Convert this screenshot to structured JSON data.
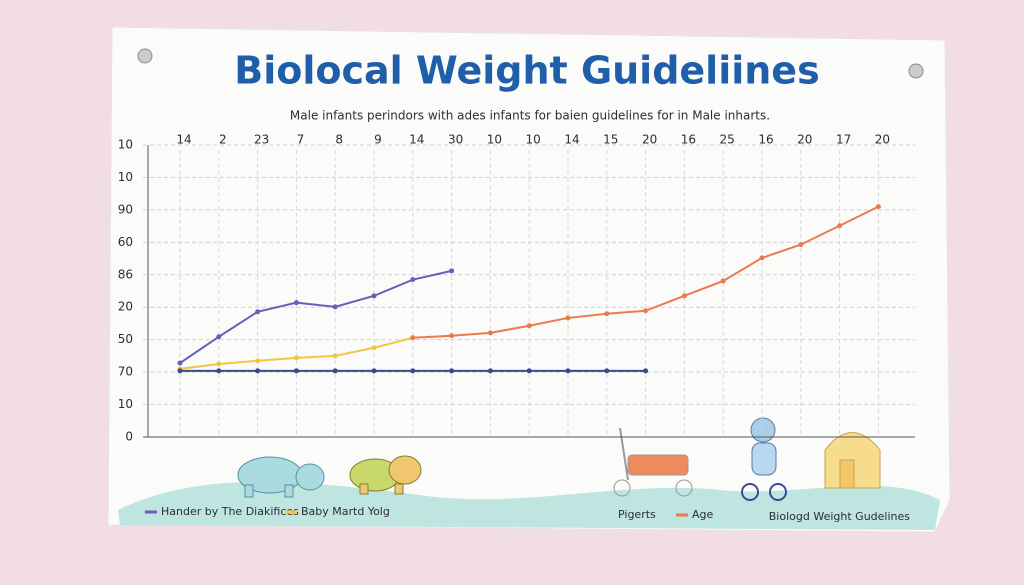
{
  "chart_data": {
    "type": "line",
    "title": "Biolocal Weight Guideliines",
    "subtitle": "Male infants perindors with ades infants for baien guidelines for in Male inharts.",
    "categories": [
      "14",
      "2",
      "23",
      "7",
      "8",
      "9",
      "14",
      "30",
      "10",
      "10",
      "14",
      "15",
      "20",
      "16",
      "25",
      "16",
      "20",
      "17",
      "20"
    ],
    "ylim": [
      0,
      9
    ],
    "yticks": [
      {
        "value": 0,
        "label": "0"
      },
      {
        "value": 1,
        "label": "10"
      },
      {
        "value": 2,
        "label": "70"
      },
      {
        "value": 3,
        "label": "50"
      },
      {
        "value": 4,
        "label": "20"
      },
      {
        "value": 5,
        "label": "86"
      },
      {
        "value": 6,
        "label": "60"
      },
      {
        "value": 7,
        "label": "90"
      },
      {
        "value": 8,
        "label": "10"
      },
      {
        "value": 9,
        "label": "10"
      }
    ],
    "grid": true,
    "series": [
      {
        "name": "Hander by The Diakifices",
        "color": "#6a5fb8",
        "values": [
          2.28,
          3.09,
          3.86,
          4.14,
          4.01,
          4.35,
          4.85,
          5.12,
          null,
          null,
          null,
          null,
          null,
          null,
          null,
          null,
          null,
          null,
          null
        ]
      },
      {
        "name": "Baby Martd Yolg",
        "color": "#f1c642",
        "values": [
          2.1,
          2.25,
          2.35,
          2.44,
          2.5,
          2.75,
          3.06,
          null,
          null,
          null,
          null,
          null,
          null,
          null,
          null,
          null,
          null,
          null,
          null
        ]
      },
      {
        "name": "Age",
        "color": "#ec7a4f",
        "values": [
          null,
          null,
          null,
          null,
          null,
          null,
          3.06,
          3.12,
          3.21,
          3.43,
          3.67,
          3.8,
          3.89,
          4.35,
          4.81,
          5.52,
          5.93,
          6.51,
          7.1
        ]
      },
      {
        "color": "#3b4a8c",
        "values": [
          2.04,
          2.04,
          2.04,
          2.04,
          2.04,
          2.04,
          2.04,
          2.04,
          2.04,
          2.04,
          2.04,
          2.04,
          2.04,
          null,
          null,
          null,
          null,
          null,
          null
        ]
      }
    ],
    "legend_note": "Pigerts",
    "footer": "Biologd Weight Gudelines"
  }
}
